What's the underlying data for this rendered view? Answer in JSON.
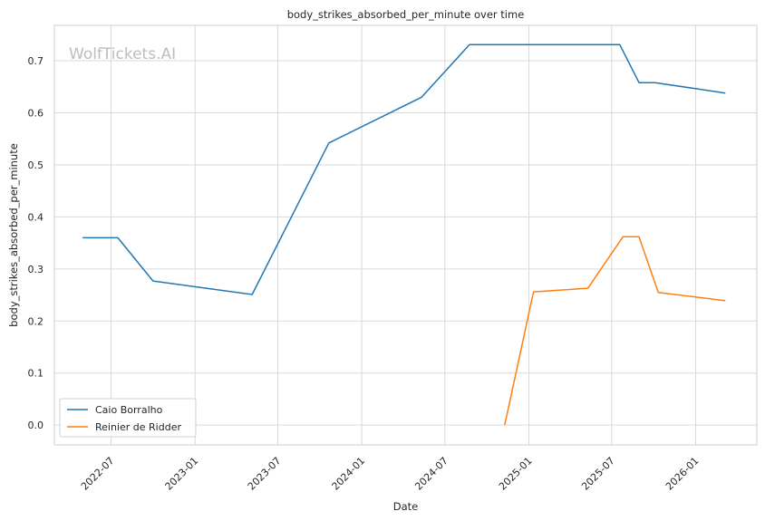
{
  "chart_data": {
    "type": "line",
    "title": "body_strikes_absorbed_per_minute over time",
    "xlabel": "Date",
    "ylabel": "body_strikes_absorbed_per_minute",
    "watermark": "WolfTickets.AI",
    "x_ticks": [
      "2022-07",
      "2023-01",
      "2023-07",
      "2024-01",
      "2024-07",
      "2025-01",
      "2025-07",
      "2026-01"
    ],
    "y_ticks": [
      "0.0",
      "0.1",
      "0.2",
      "0.3",
      "0.4",
      "0.5",
      "0.6",
      "0.7"
    ],
    "xlim": [
      "2022-02-27",
      "2026-05-15"
    ],
    "ylim": [
      -0.038,
      0.768
    ],
    "grid": true,
    "legend_position": "lower-left",
    "series": [
      {
        "name": "Caio Borralho",
        "color": "#1f77b4",
        "points": [
          {
            "x": "2022-04-30",
            "y": 0.36
          },
          {
            "x": "2022-07-16",
            "y": 0.36
          },
          {
            "x": "2022-10-01",
            "y": 0.277
          },
          {
            "x": "2023-05-06",
            "y": 0.251
          },
          {
            "x": "2023-10-21",
            "y": 0.542
          },
          {
            "x": "2024-05-11",
            "y": 0.63
          },
          {
            "x": "2024-08-24",
            "y": 0.731
          },
          {
            "x": "2025-07-19",
            "y": 0.731
          },
          {
            "x": "2025-08-30",
            "y": 0.658
          },
          {
            "x": "2025-10-04",
            "y": 0.658
          },
          {
            "x": "2026-03-07",
            "y": 0.638
          }
        ]
      },
      {
        "name": "Reinier de Ridder",
        "color": "#ff7f0e",
        "points": [
          {
            "x": "2024-11-09",
            "y": 0.0
          },
          {
            "x": "2025-01-11",
            "y": 0.256
          },
          {
            "x": "2025-05-10",
            "y": 0.263
          },
          {
            "x": "2025-07-26",
            "y": 0.362
          },
          {
            "x": "2025-08-30",
            "y": 0.362
          },
          {
            "x": "2025-10-11",
            "y": 0.255
          },
          {
            "x": "2026-03-07",
            "y": 0.239
          }
        ]
      }
    ]
  }
}
